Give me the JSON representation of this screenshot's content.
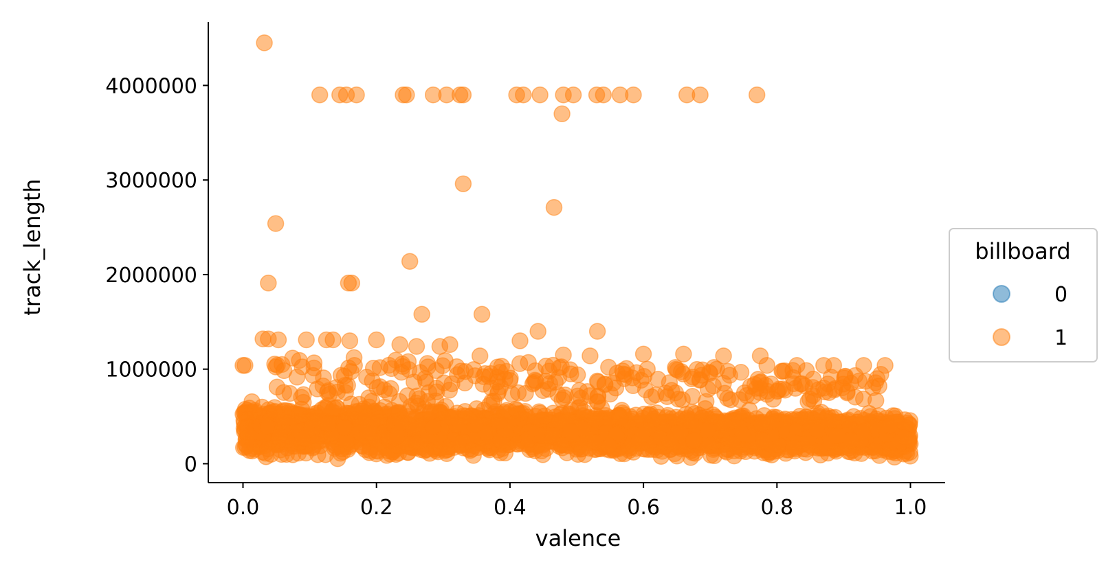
{
  "chart_data": {
    "type": "scatter",
    "title": "",
    "xlabel": "valence",
    "ylabel": "track_length",
    "xlim": [
      -0.052,
      1.052
    ],
    "ylim": [
      -200000,
      4700000
    ],
    "x_ticks": [
      0.0,
      0.2,
      0.4,
      0.6,
      0.8,
      1.0
    ],
    "x_tick_labels": [
      "0.0",
      "0.2",
      "0.4",
      "0.6",
      "0.8",
      "1.0"
    ],
    "y_ticks": [
      0,
      1000000,
      2000000,
      3000000,
      4000000
    ],
    "y_tick_labels": [
      "0",
      "1000000",
      "2000000",
      "3000000",
      "4000000"
    ],
    "grid": false,
    "legend": {
      "title": "billboard",
      "placement": "right",
      "entries": [
        {
          "label": "0",
          "color": "#1f77b4"
        },
        {
          "label": "1",
          "color": "#ff7f0e"
        }
      ]
    },
    "series": [
      {
        "name": "1",
        "color": "#ff7f0e",
        "points": [
          [
            0.032,
            4450000
          ],
          [
            0.115,
            3900000
          ],
          [
            0.145,
            3900000
          ],
          [
            0.155,
            3900000
          ],
          [
            0.17,
            3900000
          ],
          [
            0.24,
            3900000
          ],
          [
            0.245,
            3900000
          ],
          [
            0.285,
            3900000
          ],
          [
            0.305,
            3900000
          ],
          [
            0.325,
            3900000
          ],
          [
            0.33,
            3900000
          ],
          [
            0.41,
            3900000
          ],
          [
            0.42,
            3900000
          ],
          [
            0.445,
            3900000
          ],
          [
            0.48,
            3900000
          ],
          [
            0.495,
            3900000
          ],
          [
            0.53,
            3900000
          ],
          [
            0.54,
            3900000
          ],
          [
            0.565,
            3900000
          ],
          [
            0.585,
            3900000
          ],
          [
            0.665,
            3900000
          ],
          [
            0.685,
            3900000
          ],
          [
            0.77,
            3900000
          ],
          [
            0.478,
            3700000
          ],
          [
            0.33,
            2960000
          ],
          [
            0.466,
            2710000
          ],
          [
            0.049,
            2540000
          ],
          [
            0.25,
            2140000
          ],
          [
            0.038,
            1910000
          ],
          [
            0.158,
            1910000
          ],
          [
            0.163,
            1910000
          ],
          [
            0.268,
            1580000
          ],
          [
            0.358,
            1580000
          ],
          [
            0.442,
            1400000
          ],
          [
            0.531,
            1400000
          ],
          [
            0.0,
            1040000
          ],
          [
            0.003,
            1040000
          ],
          [
            0.03,
            1320000
          ],
          [
            0.038,
            1320000
          ],
          [
            0.053,
            1310000
          ],
          [
            0.095,
            1310000
          ],
          [
            0.125,
            1310000
          ],
          [
            0.135,
            1310000
          ],
          [
            0.16,
            1300000
          ],
          [
            0.2,
            1310000
          ],
          [
            0.235,
            1260000
          ],
          [
            0.26,
            1240000
          ],
          [
            0.295,
            1240000
          ],
          [
            0.31,
            1260000
          ],
          [
            0.355,
            1140000
          ],
          [
            0.415,
            1300000
          ],
          [
            0.48,
            1150000
          ],
          [
            0.52,
            1140000
          ],
          [
            0.6,
            1160000
          ],
          [
            0.66,
            1160000
          ],
          [
            0.72,
            1140000
          ],
          [
            0.775,
            1140000
          ],
          [
            0.785,
            1040000
          ],
          [
            0.83,
            1040000
          ],
          [
            0.87,
            1040000
          ],
          [
            0.885,
            1040000
          ],
          [
            0.93,
            1040000
          ],
          [
            0.95,
            900000
          ],
          [
            0.962,
            1040000
          ],
          [
            0.87,
            800000
          ]
        ],
        "dense_band": {
          "x_range": [
            0.0,
            1.0
          ],
          "y_range": [
            30000,
            650000
          ]
        }
      }
    ]
  }
}
